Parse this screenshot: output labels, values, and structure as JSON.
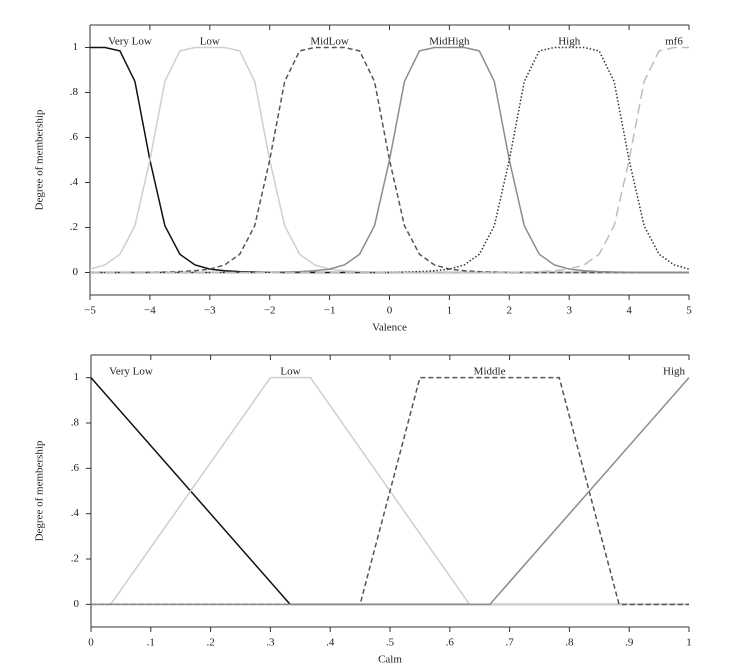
{
  "chart_data": [
    {
      "type": "line",
      "x_label": "Valence",
      "y_label": "Degree of membership",
      "xlim": [
        -5,
        5
      ],
      "ylim": [
        -0.1,
        1.1
      ],
      "xticks": [
        {
          "value": -5,
          "label": "−5"
        },
        {
          "value": -4,
          "label": "−4"
        },
        {
          "value": -3,
          "label": "−3"
        },
        {
          "value": -2,
          "label": "−2"
        },
        {
          "value": -1,
          "label": "−1"
        },
        0,
        1,
        2,
        3,
        4,
        5
      ],
      "yticks": [
        0,
        {
          "value": 0.2,
          "label": ".2"
        },
        {
          "value": 0.4,
          "label": ".4"
        },
        {
          "value": 0.6,
          "label": ".6"
        },
        {
          "value": 0.8,
          "label": ".8"
        },
        1
      ],
      "x": [
        -5,
        -4.75,
        -4.5,
        -4.25,
        -4,
        -3.75,
        -3.5,
        -3.25,
        -3,
        -2.75,
        -2.5,
        -2.25,
        -2,
        -1.75,
        -1.5,
        -1.25,
        -1,
        -0.75,
        -0.5,
        -0.25,
        0,
        0.25,
        0.5,
        0.75,
        1,
        1.25,
        1.5,
        1.75,
        2,
        2.25,
        2.5,
        2.75,
        3,
        3.25,
        3.5,
        3.75,
        4,
        4.25,
        4.5,
        4.75,
        5
      ],
      "series": [
        {
          "name": "Very Low",
          "color": "#111111",
          "dash": "solid",
          "values": [
            1,
            1,
            0.985,
            0.849,
            0.5,
            0.208,
            0.081,
            0.034,
            0.015,
            0.008,
            0.004,
            0.002,
            0.001,
            0,
            0,
            0,
            0,
            0,
            0,
            0,
            0,
            0,
            0,
            0,
            0,
            0,
            0,
            0,
            0,
            0,
            0,
            0,
            0,
            0,
            0,
            0,
            0,
            0,
            0,
            0,
            0
          ]
        },
        {
          "name": "Low",
          "color": "#cfcfcf",
          "dash": "solid",
          "values": [
            0.015,
            0.034,
            0.081,
            0.208,
            0.5,
            0.849,
            0.985,
            1,
            1,
            1,
            0.985,
            0.849,
            0.5,
            0.208,
            0.081,
            0.034,
            0.015,
            0.008,
            0.004,
            0.002,
            0.001,
            0,
            0,
            0,
            0,
            0,
            0,
            0,
            0,
            0,
            0,
            0,
            0,
            0,
            0,
            0,
            0,
            0,
            0,
            0,
            0
          ]
        },
        {
          "name": "MidLow",
          "color": "#555555",
          "dash": "dashed",
          "values": [
            0,
            0,
            0,
            0,
            0.001,
            0.002,
            0.004,
            0.008,
            0.015,
            0.034,
            0.081,
            0.208,
            0.5,
            0.849,
            0.985,
            1,
            1,
            1,
            0.985,
            0.849,
            0.5,
            0.208,
            0.081,
            0.034,
            0.015,
            0.008,
            0.004,
            0.002,
            0.001,
            0,
            0,
            0,
            0,
            0,
            0,
            0,
            0,
            0,
            0,
            0,
            0
          ]
        },
        {
          "name": "MidHigh",
          "color": "#8c8c8c",
          "dash": "solid",
          "values": [
            0,
            0,
            0,
            0,
            0,
            0,
            0,
            0,
            0,
            0,
            0,
            0,
            0.001,
            0.002,
            0.004,
            0.008,
            0.015,
            0.034,
            0.081,
            0.208,
            0.5,
            0.849,
            0.985,
            1,
            1,
            1,
            0.985,
            0.849,
            0.5,
            0.208,
            0.081,
            0.034,
            0.015,
            0.008,
            0.004,
            0.002,
            0.001,
            0,
            0,
            0,
            0
          ]
        },
        {
          "name": "High",
          "color": "#333333",
          "dash": "dotted",
          "values": [
            0,
            0,
            0,
            0,
            0,
            0,
            0,
            0,
            0,
            0,
            0,
            0,
            0,
            0,
            0,
            0,
            0,
            0,
            0,
            0,
            0.001,
            0.002,
            0.004,
            0.008,
            0.015,
            0.034,
            0.081,
            0.208,
            0.5,
            0.849,
            0.985,
            1,
            1,
            1,
            0.985,
            0.849,
            0.5,
            0.208,
            0.081,
            0.034,
            0.015
          ]
        },
        {
          "name": "mf6",
          "color": "#bdbdbd",
          "dash": "longdash",
          "values": [
            0,
            0,
            0,
            0,
            0,
            0,
            0,
            0,
            0,
            0,
            0,
            0,
            0,
            0,
            0,
            0,
            0,
            0,
            0,
            0,
            0,
            0,
            0,
            0,
            0,
            0,
            0,
            0,
            0.001,
            0.002,
            0.004,
            0.008,
            0.015,
            0.034,
            0.081,
            0.208,
            0.5,
            0.849,
            0.985,
            1,
            1
          ]
        }
      ]
    },
    {
      "type": "line",
      "x_label": "Calm",
      "y_label": "Degree of membership",
      "xlim": [
        0,
        1
      ],
      "ylim": [
        -0.1,
        1.1
      ],
      "xticks": [
        0,
        {
          "value": 0.1,
          "label": ".1"
        },
        {
          "value": 0.2,
          "label": ".2"
        },
        {
          "value": 0.3,
          "label": ".3"
        },
        {
          "value": 0.4,
          "label": ".4"
        },
        {
          "value": 0.5,
          "label": ".5"
        },
        {
          "value": 0.6,
          "label": ".6"
        },
        {
          "value": 0.7,
          "label": ".7"
        },
        {
          "value": 0.8,
          "label": ".8"
        },
        {
          "value": 0.9,
          "label": ".9"
        },
        1
      ],
      "yticks": [
        0,
        {
          "value": 0.2,
          "label": ".2"
        },
        {
          "value": 0.4,
          "label": ".4"
        },
        {
          "value": 0.6,
          "label": ".6"
        },
        {
          "value": 0.8,
          "label": ".8"
        },
        1
      ],
      "series": [
        {
          "name": "Very Low",
          "color": "#111111",
          "dash": "solid",
          "x": [
            0,
            0.333,
            1
          ],
          "values": [
            1,
            0,
            0
          ]
        },
        {
          "name": "Low",
          "color": "#cfcfcf",
          "dash": "solid",
          "x": [
            0,
            0.033,
            0.3,
            0.367,
            0.633,
            1
          ],
          "values": [
            0,
            0,
            1,
            1,
            0,
            0
          ]
        },
        {
          "name": "Middle",
          "color": "#555555",
          "dash": "dashed",
          "x": [
            0,
            0.45,
            0.55,
            0.783,
            0.883,
            1
          ],
          "values": [
            0,
            0,
            1,
            1,
            0,
            0
          ]
        },
        {
          "name": "High",
          "color": "#8c8c8c",
          "dash": "solid",
          "x": [
            0,
            0.667,
            1
          ],
          "values": [
            0,
            0,
            1
          ]
        }
      ]
    }
  ]
}
